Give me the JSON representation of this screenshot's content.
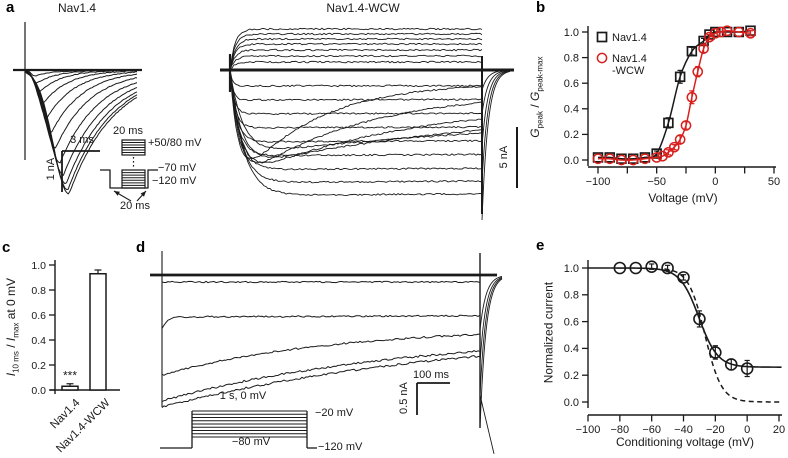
{
  "figure": {
    "background": "#ffffff",
    "ink_color": "#1a1a1a",
    "accent_red": "#d8201d"
  },
  "panels": {
    "a": {
      "label": "a",
      "left_title": "Nav1.4",
      "right_title": "Nav1.4-WCW",
      "left_scalebar": {
        "horizontal": "3 ms",
        "vertical": "1 nA"
      },
      "right_scalebar": {
        "vertical": "5 nA"
      },
      "protocol": {
        "top_duration": "20 ms",
        "step_level": "+50/80 mV",
        "hold_level": "−70 mV",
        "base_level": "−120 mV",
        "bottom_duration": "20 ms"
      }
    },
    "b": {
      "label": "b"
    },
    "c": {
      "label": "c"
    },
    "d": {
      "label": "d",
      "scalebar": {
        "horizontal": "100 ms",
        "vertical": "0.5 nA"
      },
      "protocol": {
        "pulse": "1 s, 0 mV",
        "top_level": "−20 mV",
        "mid_level": "−80 mV",
        "base_level": "−120 mV"
      }
    },
    "e": {
      "label": "e"
    }
  },
  "chart_data": [
    {
      "panel": "b",
      "type": "scatter",
      "xlabel": "Voltage (mV)",
      "ylabel": "G_peak / G_peak-max",
      "ylabel_parts": {
        "sym1": "G",
        "sub1": "peak",
        "sep": " / ",
        "sym2": "G",
        "sub2": "peak-max"
      },
      "xlim": [
        -100,
        50
      ],
      "ylim": [
        0,
        1.0
      ],
      "xticks": [
        -100,
        -50,
        0,
        50
      ],
      "xticks_minor": [
        -75,
        -25,
        25
      ],
      "yticks": [
        0.0,
        0.2,
        0.4,
        0.6,
        0.8,
        1.0
      ],
      "legend_position": "upper-left",
      "series": [
        {
          "name": "Nav1.4",
          "legend_lines": [
            "Nav1.4"
          ],
          "marker": "open-square",
          "color": "#1a1a1a",
          "x": [
            -100,
            -90,
            -80,
            -70,
            -60,
            -50,
            -40,
            -30,
            -20,
            -10,
            -5,
            0,
            10,
            20,
            30
          ],
          "y": [
            0.02,
            0.02,
            0.01,
            0.01,
            0.02,
            0.05,
            0.29,
            0.65,
            0.85,
            0.93,
            0.98,
            1.0,
            1.0,
            1.0,
            1.01
          ],
          "yerr": [
            0.01,
            0.01,
            0.01,
            0.01,
            0.01,
            0.02,
            0.04,
            0.05,
            0.03,
            0.02,
            0.01,
            0.01,
            0.01,
            0.01,
            0.01
          ]
        },
        {
          "name": "Nav1.4-WCW",
          "legend_lines": [
            "Nav1.4",
            "-WCW"
          ],
          "marker": "open-circle",
          "color": "#d8201d",
          "x": [
            -100,
            -90,
            -80,
            -70,
            -60,
            -50,
            -45,
            -40,
            -35,
            -30,
            -25,
            -20,
            -15,
            -10,
            -5,
            0,
            5,
            10,
            20,
            30
          ],
          "y": [
            0.01,
            0.01,
            0.0,
            0.0,
            0.01,
            0.02,
            0.03,
            0.06,
            0.1,
            0.16,
            0.27,
            0.49,
            0.69,
            0.87,
            0.96,
            0.99,
            1.0,
            1.01,
            1.0,
            0.99
          ],
          "yerr": [
            0.01,
            0.01,
            0.01,
            0.01,
            0.01,
            0.01,
            0.01,
            0.02,
            0.02,
            0.03,
            0.03,
            0.05,
            0.04,
            0.03,
            0.02,
            0.01,
            0.01,
            0.01,
            0.01,
            0.02
          ]
        }
      ]
    },
    {
      "panel": "c",
      "type": "bar",
      "categories": [
        "Nav1.4",
        "Nav1.4-WCW"
      ],
      "values": [
        0.03,
        0.93
      ],
      "errors": [
        0.02,
        0.03
      ],
      "significance": [
        "***",
        ""
      ],
      "ylabel": "I_10 ms / I_max at 0 mV",
      "ylabel_parts": {
        "sym1": "I",
        "sub1": "10 ms",
        "sep": " / ",
        "sym2": "I",
        "sub2": "max",
        "tail": " at 0 mV"
      },
      "ylim": [
        0,
        1.0
      ],
      "yticks": [
        0.0,
        0.2,
        0.4,
        0.6,
        0.8,
        1.0
      ]
    },
    {
      "panel": "e",
      "type": "scatter",
      "xlabel": "Conditioning voltage (mV)",
      "ylabel": "Normalized current",
      "xlim": [
        -100,
        20
      ],
      "ylim": [
        0,
        1.0
      ],
      "xticks": [
        -100,
        -80,
        -60,
        -40,
        -20,
        0,
        20
      ],
      "yticks": [
        0.0,
        0.2,
        0.4,
        0.6,
        0.8,
        1.0
      ],
      "series": [
        {
          "marker": "open-circle",
          "color": "#1a1a1a",
          "x": [
            -80,
            -70,
            -60,
            -50,
            -40,
            -30,
            -20,
            -10,
            0
          ],
          "y": [
            1.0,
            1.0,
            1.01,
            1.0,
            0.93,
            0.62,
            0.37,
            0.28,
            0.25
          ],
          "yerr": [
            0.01,
            0.01,
            0.02,
            0.02,
            0.02,
            0.06,
            0.05,
            0.04,
            0.06
          ]
        }
      ],
      "fits": {
        "solid": {
          "style": "solid",
          "plateau": 0.26,
          "v_half": -30.3,
          "k": 5.9
        },
        "dashed": {
          "style": "dashed",
          "plateau": 0.0,
          "v_half": -26.5,
          "k": 5.2
        }
      }
    }
  ]
}
